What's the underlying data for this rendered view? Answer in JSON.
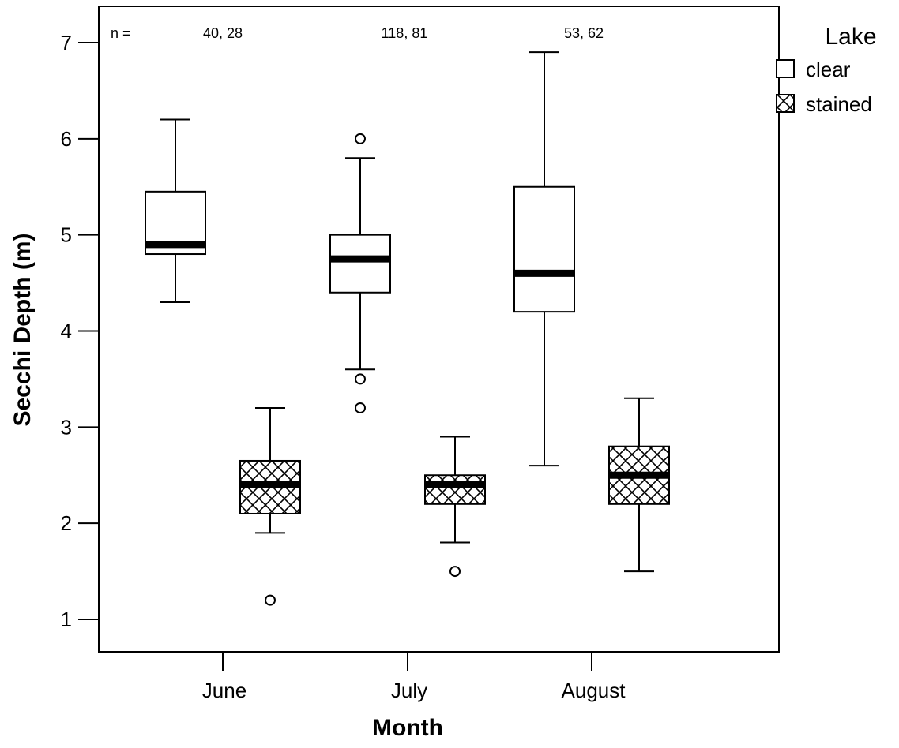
{
  "chart_data": {
    "type": "boxplot",
    "xlabel": "Month",
    "ylabel": "Secchi Depth (m)",
    "ylim": [
      0.8,
      7.3
    ],
    "yticks": [
      1,
      2,
      3,
      4,
      5,
      6,
      7
    ],
    "categories": [
      "June",
      "July",
      "August"
    ],
    "n_prefix": "n =",
    "n_labels": [
      "40, 28",
      "118, 81",
      "53, 62"
    ],
    "legend": {
      "title": "Lake",
      "position": "outside-top-right",
      "entries": [
        {
          "name": "clear",
          "pattern": "plain"
        },
        {
          "name": "stained",
          "pattern": "crosshatch"
        }
      ]
    },
    "series": [
      {
        "name": "clear",
        "pattern": "plain",
        "boxes": [
          {
            "category": "June",
            "whisker_low": 4.3,
            "q1": 4.8,
            "median": 4.9,
            "q3": 5.45,
            "whisker_high": 6.2,
            "outliers": []
          },
          {
            "category": "July",
            "whisker_low": 3.6,
            "q1": 4.4,
            "median": 4.75,
            "q3": 5.0,
            "whisker_high": 5.8,
            "outliers": [
              6.0,
              3.5,
              3.2
            ]
          },
          {
            "category": "August",
            "whisker_low": 2.6,
            "q1": 4.2,
            "median": 4.6,
            "q3": 5.5,
            "whisker_high": 6.9,
            "outliers": []
          }
        ]
      },
      {
        "name": "stained",
        "pattern": "crosshatch",
        "boxes": [
          {
            "category": "June",
            "whisker_low": 1.9,
            "q1": 2.1,
            "median": 2.4,
            "q3": 2.65,
            "whisker_high": 3.2,
            "outliers": [
              1.2
            ]
          },
          {
            "category": "July",
            "whisker_low": 1.8,
            "q1": 2.2,
            "median": 2.4,
            "q3": 2.5,
            "whisker_high": 2.9,
            "outliers": [
              1.5
            ]
          },
          {
            "category": "August",
            "whisker_low": 1.5,
            "q1": 2.2,
            "median": 2.5,
            "q3": 2.8,
            "whisker_high": 3.3,
            "outliers": []
          }
        ]
      }
    ]
  }
}
